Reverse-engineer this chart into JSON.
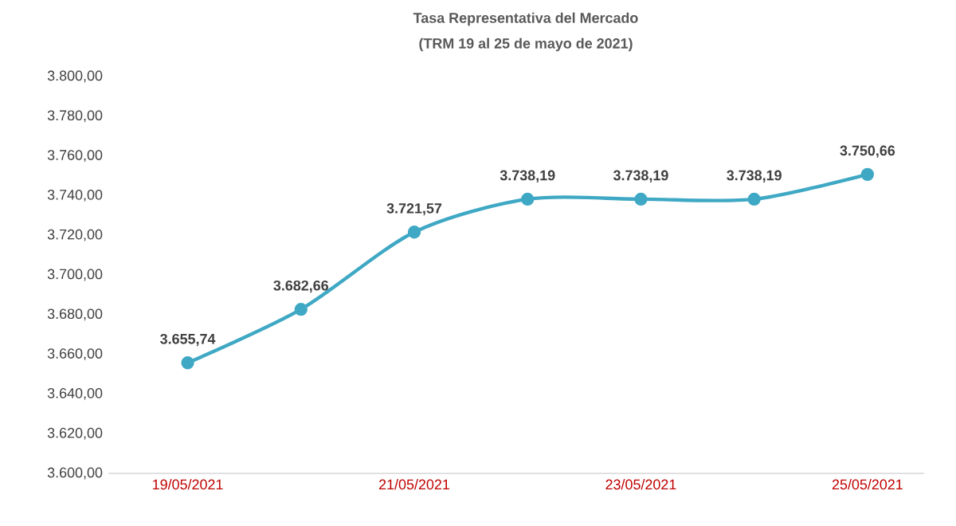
{
  "chart_data": {
    "type": "line",
    "title": "Tasa Representativa del Mercado",
    "subtitle": "(TRM 19 al 25 de mayo de 2021)",
    "categories": [
      "19/05/2021",
      null,
      "21/05/2021",
      null,
      "23/05/2021",
      null,
      "25/05/2021"
    ],
    "values": [
      3655.74,
      3682.66,
      3721.57,
      3738.19,
      3738.19,
      3738.19,
      3750.66
    ],
    "value_labels": [
      "3.655,74",
      "3.682,66",
      "3.721,57",
      "3.738,19",
      "3.738,19",
      "3.738,19",
      "3.750,66"
    ],
    "color": "#3fa8c4",
    "marker": "circle",
    "line_style": "solid",
    "ylim": [
      3600,
      3800
    ],
    "yticks": [
      {
        "value": 3600,
        "label": "3.600,00"
      },
      {
        "value": 3620,
        "label": "3.620,00"
      },
      {
        "value": 3640,
        "label": "3.640,00"
      },
      {
        "value": 3660,
        "label": "3.660,00"
      },
      {
        "value": 3680,
        "label": "3.680,00"
      },
      {
        "value": 3700,
        "label": "3.700,00"
      },
      {
        "value": 3720,
        "label": "3.720,00"
      },
      {
        "value": 3740,
        "label": "3.740,00"
      },
      {
        "value": 3760,
        "label": "3.760,00"
      },
      {
        "value": 3780,
        "label": "3.780,00"
      },
      {
        "value": 3800,
        "label": "3.800,00"
      }
    ]
  }
}
